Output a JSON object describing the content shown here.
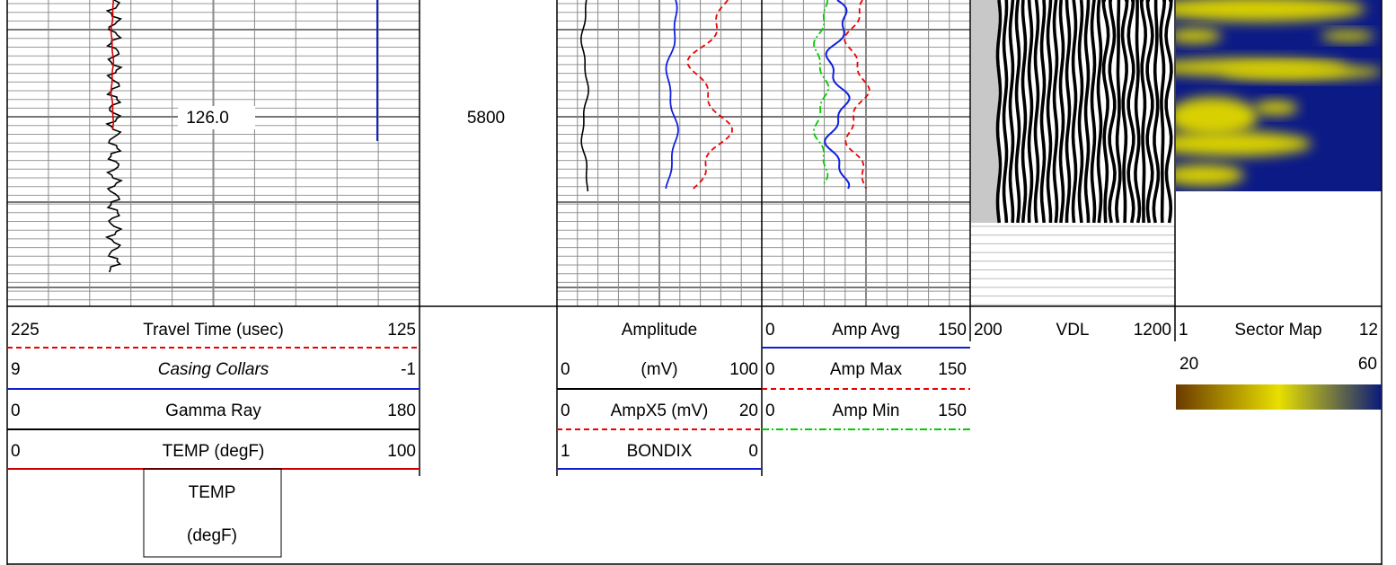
{
  "depth_track": {
    "depth": "5800"
  },
  "track1": {
    "depth_label": "126.0",
    "curves": [
      {
        "left": "225",
        "name": "Travel Time (usec)",
        "right": "125"
      },
      {
        "left": "9",
        "name": "Casing Collars",
        "right": "-1"
      },
      {
        "left": "0",
        "name": "Gamma Ray",
        "right": "180"
      },
      {
        "left": "0",
        "name": "TEMP (degF)",
        "right": "100"
      }
    ]
  },
  "temp_box": {
    "lines": [
      "TEMP",
      "(degF)"
    ]
  },
  "track2": {
    "title": "Amplitude",
    "curves": [
      {
        "left": "0",
        "name": "(mV)",
        "right": "100"
      },
      {
        "left": "0",
        "name": "AmpX5 (mV)",
        "right": "20"
      },
      {
        "left": "1",
        "name": "BONDIX",
        "right": "0"
      }
    ]
  },
  "track3": {
    "curves": [
      {
        "left": "0",
        "name": "Amp Avg",
        "right": "150"
      },
      {
        "left": "0",
        "name": "Amp Max",
        "right": "150"
      },
      {
        "left": "0",
        "name": "Amp Min",
        "right": "150"
      }
    ]
  },
  "vdl": {
    "left": "200",
    "name": "VDL",
    "right": "1200"
  },
  "sector_map": {
    "left": "1",
    "name": "Sector Map",
    "right": "12",
    "scale_left": "20",
    "scale_right": "60"
  }
}
